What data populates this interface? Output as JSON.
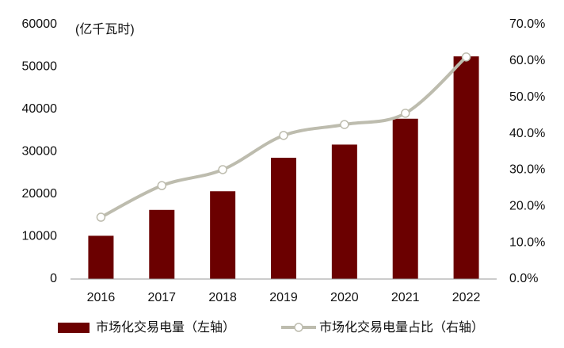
{
  "chart_data": {
    "type": "bar-line",
    "annotation": "(亿千瓦时)",
    "categories": [
      "2016",
      "2017",
      "2018",
      "2019",
      "2020",
      "2021",
      "2022"
    ],
    "series": [
      {
        "name": "市场化交易电量（左轴）",
        "type": "bar",
        "color": "#6b0000",
        "values": [
          10200,
          16300,
          20700,
          28600,
          31700,
          37800,
          52500
        ]
      },
      {
        "name": "市场化交易电量占比（右轴）",
        "type": "line",
        "axis": "y2",
        "color": "#bdbcae",
        "values": [
          17.0,
          25.7,
          30.1,
          39.5,
          42.5,
          45.6,
          61.1
        ]
      }
    ],
    "ylim": [
      0,
      60000
    ],
    "yticks": [
      0,
      10000,
      20000,
      30000,
      40000,
      50000,
      60000
    ],
    "y2lim": [
      0,
      70
    ],
    "y2ticks": [
      {
        "value": 0,
        "label": "0.0%"
      },
      {
        "value": 10,
        "label": "10.0%"
      },
      {
        "value": 20,
        "label": "20.0%"
      },
      {
        "value": 30,
        "label": "30.0%"
      },
      {
        "value": 40,
        "label": "40.0%"
      },
      {
        "value": 50,
        "label": "50.0%"
      },
      {
        "value": 60,
        "label": "60.0%"
      },
      {
        "value": 70,
        "label": "70.0%"
      }
    ],
    "grid": false,
    "legend": "bottom"
  }
}
